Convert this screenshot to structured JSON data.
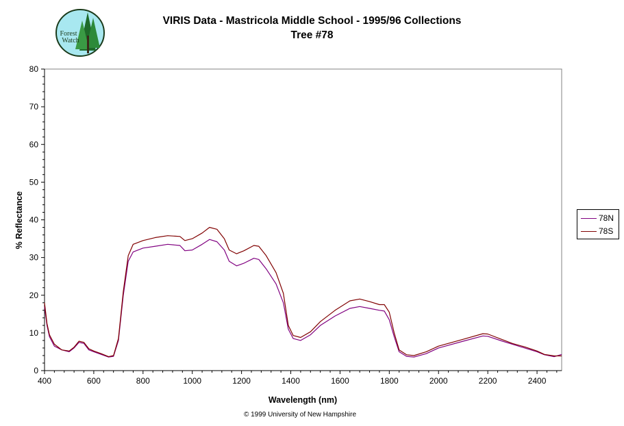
{
  "title": "VIRIS Data - Mastricola Middle School - 1995/96 Collections",
  "subtitle": "Tree #78",
  "logo": {
    "text_line1": "Forest",
    "text_line2": "Watch"
  },
  "copyright": "© 1999 University of New Hampshire",
  "colors": {
    "78N": "#800080",
    "78S": "#800000",
    "axis": "#808080"
  },
  "chart_data": {
    "type": "line",
    "xlabel": "Wavelength (nm)",
    "ylabel": "% Reflectance",
    "xlim": [
      400,
      2500
    ],
    "ylim": [
      0,
      80
    ],
    "xticks": [
      400,
      600,
      800,
      1000,
      1200,
      1400,
      1600,
      1800,
      2000,
      2200,
      2400
    ],
    "yticks": [
      0,
      10,
      20,
      30,
      40,
      50,
      60,
      70,
      80
    ],
    "grid": false,
    "legend_position": "right",
    "series": [
      {
        "name": "78N",
        "points": [
          [
            400,
            17
          ],
          [
            410,
            12
          ],
          [
            420,
            9
          ],
          [
            440,
            6.5
          ],
          [
            470,
            5.5
          ],
          [
            500,
            5
          ],
          [
            520,
            6
          ],
          [
            540,
            7.5
          ],
          [
            560,
            7.2
          ],
          [
            580,
            5.5
          ],
          [
            600,
            5
          ],
          [
            630,
            4.3
          ],
          [
            660,
            3.6
          ],
          [
            680,
            3.8
          ],
          [
            700,
            8
          ],
          [
            720,
            20
          ],
          [
            740,
            29
          ],
          [
            760,
            31.5
          ],
          [
            800,
            32.5
          ],
          [
            850,
            33
          ],
          [
            900,
            33.5
          ],
          [
            950,
            33.2
          ],
          [
            970,
            31.8
          ],
          [
            1000,
            32
          ],
          [
            1040,
            33.5
          ],
          [
            1070,
            34.8
          ],
          [
            1100,
            34.2
          ],
          [
            1130,
            32
          ],
          [
            1150,
            29
          ],
          [
            1180,
            27.8
          ],
          [
            1210,
            28.5
          ],
          [
            1250,
            29.8
          ],
          [
            1270,
            29.5
          ],
          [
            1300,
            27
          ],
          [
            1340,
            23
          ],
          [
            1370,
            18
          ],
          [
            1390,
            11
          ],
          [
            1410,
            8.5
          ],
          [
            1440,
            8
          ],
          [
            1480,
            9.5
          ],
          [
            1520,
            12
          ],
          [
            1580,
            14.5
          ],
          [
            1640,
            16.5
          ],
          [
            1680,
            17
          ],
          [
            1720,
            16.5
          ],
          [
            1760,
            16
          ],
          [
            1780,
            15.8
          ],
          [
            1800,
            13.5
          ],
          [
            1820,
            9
          ],
          [
            1840,
            5
          ],
          [
            1870,
            3.8
          ],
          [
            1900,
            3.6
          ],
          [
            1950,
            4.5
          ],
          [
            2000,
            6
          ],
          [
            2100,
            7.8
          ],
          [
            2180,
            9.2
          ],
          [
            2200,
            9.1
          ],
          [
            2260,
            7.8
          ],
          [
            2300,
            7
          ],
          [
            2350,
            6
          ],
          [
            2400,
            5
          ],
          [
            2430,
            4.2
          ],
          [
            2470,
            3.7
          ],
          [
            2500,
            4.3
          ]
        ]
      },
      {
        "name": "78S",
        "points": [
          [
            400,
            18
          ],
          [
            410,
            12.5
          ],
          [
            420,
            9.5
          ],
          [
            440,
            7
          ],
          [
            470,
            5.5
          ],
          [
            500,
            5.2
          ],
          [
            520,
            6.2
          ],
          [
            540,
            7.8
          ],
          [
            560,
            7.5
          ],
          [
            580,
            5.8
          ],
          [
            600,
            5.2
          ],
          [
            630,
            4.5
          ],
          [
            660,
            3.7
          ],
          [
            680,
            4
          ],
          [
            700,
            8.5
          ],
          [
            720,
            21
          ],
          [
            740,
            30.5
          ],
          [
            760,
            33.5
          ],
          [
            800,
            34.5
          ],
          [
            850,
            35.3
          ],
          [
            900,
            35.8
          ],
          [
            950,
            35.6
          ],
          [
            970,
            34.5
          ],
          [
            1000,
            35
          ],
          [
            1040,
            36.5
          ],
          [
            1070,
            38
          ],
          [
            1100,
            37.5
          ],
          [
            1130,
            35
          ],
          [
            1150,
            32
          ],
          [
            1180,
            31
          ],
          [
            1210,
            31.8
          ],
          [
            1250,
            33.2
          ],
          [
            1270,
            33
          ],
          [
            1300,
            30.5
          ],
          [
            1340,
            26
          ],
          [
            1370,
            20.5
          ],
          [
            1390,
            12
          ],
          [
            1410,
            9.3
          ],
          [
            1440,
            8.8
          ],
          [
            1480,
            10.3
          ],
          [
            1520,
            13
          ],
          [
            1580,
            16
          ],
          [
            1640,
            18.5
          ],
          [
            1680,
            19
          ],
          [
            1720,
            18.3
          ],
          [
            1760,
            17.5
          ],
          [
            1780,
            17.5
          ],
          [
            1800,
            15.5
          ],
          [
            1820,
            10
          ],
          [
            1840,
            5.5
          ],
          [
            1870,
            4.2
          ],
          [
            1900,
            4
          ],
          [
            1950,
            5
          ],
          [
            2000,
            6.5
          ],
          [
            2100,
            8.3
          ],
          [
            2180,
            9.8
          ],
          [
            2200,
            9.7
          ],
          [
            2260,
            8.2
          ],
          [
            2300,
            7.2
          ],
          [
            2350,
            6.3
          ],
          [
            2400,
            5.2
          ],
          [
            2430,
            4.3
          ],
          [
            2470,
            3.9
          ],
          [
            2500,
            3.9
          ]
        ]
      }
    ]
  }
}
